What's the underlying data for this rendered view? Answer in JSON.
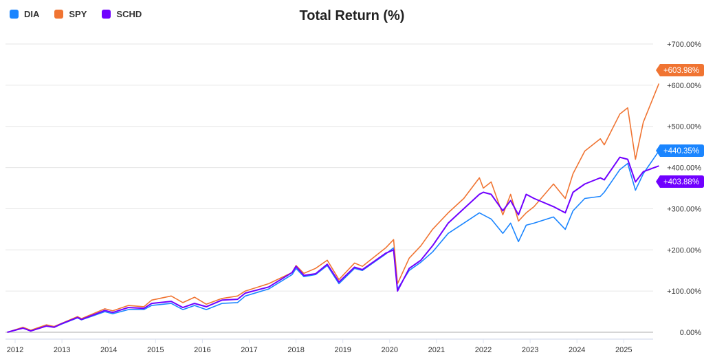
{
  "chart_data": {
    "type": "line",
    "title": "Total Return (%)",
    "xlabel": "",
    "ylabel": "",
    "ylim": [
      0,
      700
    ],
    "y_ticks": [
      "0.00%",
      "+100.00%",
      "+200.00%",
      "+300.00%",
      "+400.00%",
      "+500.00%",
      "+600.00%",
      "+700.00%"
    ],
    "x_ticks": [
      "2012",
      "2013",
      "2014",
      "2015",
      "2016",
      "2017",
      "2018",
      "2019",
      "2020",
      "2021",
      "2022",
      "2023",
      "2024",
      "2025"
    ],
    "grid": true,
    "legend_position": "top-left",
    "dates": [
      "2011-11",
      "2012-03",
      "2012-05",
      "2012-09",
      "2012-11",
      "2013-01",
      "2013-05",
      "2013-06",
      "2013-09",
      "2013-12",
      "2014-02",
      "2014-06",
      "2014-10",
      "2014-12",
      "2015-05",
      "2015-08",
      "2015-11",
      "2016-02",
      "2016-06",
      "2016-10",
      "2016-12",
      "2017-06",
      "2017-12",
      "2018-01",
      "2018-03",
      "2018-06",
      "2018-09",
      "2018-12",
      "2019-04",
      "2019-06",
      "2019-12",
      "2020-02",
      "2020-03",
      "2020-06",
      "2020-09",
      "2020-12",
      "2021-04",
      "2021-08",
      "2021-12",
      "2022-01",
      "2022-03",
      "2022-06",
      "2022-08",
      "2022-10",
      "2022-12",
      "2023-02",
      "2023-07",
      "2023-10",
      "2023-12",
      "2024-03",
      "2024-07",
      "2024-08",
      "2024-12",
      "2025-02",
      "2025-04",
      "2025-06",
      "2025-10"
    ],
    "series": [
      {
        "name": "DIA",
        "color": "#1a85ff",
        "last_label": "+440.35%",
        "values": [
          0,
          10,
          4,
          15,
          12,
          20,
          35,
          30,
          40,
          50,
          45,
          55,
          55,
          65,
          70,
          55,
          65,
          55,
          70,
          72,
          88,
          105,
          140,
          155,
          135,
          140,
          162,
          118,
          155,
          150,
          190,
          205,
          105,
          150,
          170,
          195,
          240,
          265,
          290,
          285,
          275,
          240,
          265,
          220,
          260,
          265,
          280,
          250,
          295,
          325,
          330,
          340,
          395,
          410,
          345,
          385,
          440.35
        ]
      },
      {
        "name": "SPY",
        "color": "#f07432",
        "last_label": "+603.98%",
        "values": [
          0,
          12,
          5,
          18,
          14,
          22,
          38,
          33,
          45,
          57,
          52,
          65,
          62,
          78,
          88,
          72,
          85,
          68,
          82,
          88,
          100,
          118,
          145,
          162,
          143,
          155,
          175,
          128,
          168,
          160,
          205,
          225,
          118,
          180,
          210,
          250,
          290,
          325,
          375,
          350,
          365,
          285,
          335,
          270,
          290,
          305,
          360,
          325,
          385,
          440,
          470,
          455,
          530,
          545,
          420,
          510,
          603.98
        ]
      },
      {
        "name": "SCHD",
        "color": "#7000ff",
        "last_label": "+403.88%",
        "values": [
          0,
          10,
          3,
          15,
          12,
          21,
          36,
          31,
          42,
          53,
          48,
          60,
          58,
          70,
          75,
          60,
          70,
          62,
          78,
          80,
          95,
          110,
          145,
          160,
          138,
          142,
          165,
          122,
          158,
          152,
          192,
          200,
          100,
          155,
          175,
          210,
          265,
          300,
          335,
          340,
          335,
          295,
          320,
          285,
          335,
          325,
          305,
          290,
          340,
          360,
          375,
          370,
          425,
          420,
          365,
          390,
          403.88
        ]
      }
    ]
  }
}
